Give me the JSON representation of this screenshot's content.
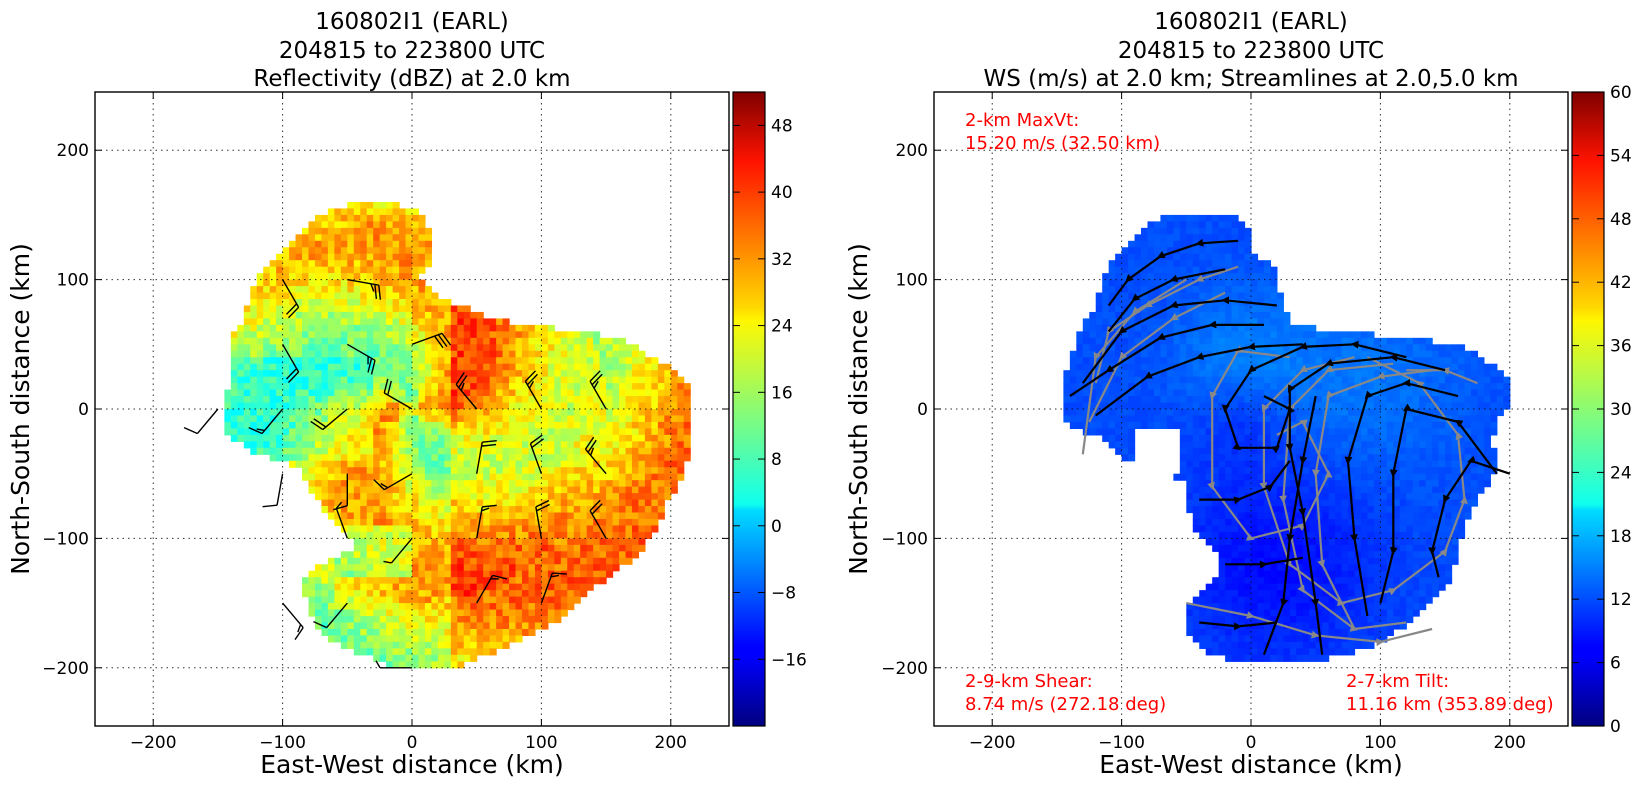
{
  "chart_data": [
    {
      "type": "heatmap",
      "title": [
        "160802I1 (EARL)",
        "204815 to 223800 UTC",
        "Reflectivity (dBZ) at 2.0 km"
      ],
      "xlabel": "East-West distance (km)",
      "ylabel": "North-South distance (km)",
      "xlim": [
        -245,
        245
      ],
      "ylim": [
        -245,
        245
      ],
      "xticks": [
        -200,
        -100,
        0,
        100,
        200
      ],
      "xtick_labels": [
        "−200",
        "−100",
        "0",
        "100",
        "200"
      ],
      "yticks": [
        -200,
        -100,
        0,
        100,
        200
      ],
      "ytick_labels": [
        "−200",
        "−100",
        "0",
        "100",
        "200"
      ],
      "grid": true,
      "colorbar": {
        "min": -24,
        "max": 52,
        "ticks": [
          -16,
          -8,
          0,
          8,
          16,
          24,
          32,
          40,
          48
        ],
        "tick_labels": [
          "−16",
          "−8",
          "0",
          "8",
          "16",
          "24",
          "32",
          "40",
          "48"
        ]
      },
      "data_extent_km": {
        "north": 158,
        "south": -198,
        "west": -143,
        "east": 217
      },
      "overlay": "wind barbs at 50 km spacing",
      "wind_barbs": [
        {
          "x": -150,
          "y": 0,
          "dir": 220,
          "speed": 10
        },
        {
          "x": -100,
          "y": 0,
          "dir": 220,
          "speed": 15
        },
        {
          "x": -50,
          "y": 0,
          "dir": 230,
          "speed": 20
        },
        {
          "x": 0,
          "y": 0,
          "dir": 300,
          "speed": 20
        },
        {
          "x": 50,
          "y": 0,
          "dir": 320,
          "speed": 25
        },
        {
          "x": 100,
          "y": 0,
          "dir": 330,
          "speed": 25
        },
        {
          "x": 150,
          "y": 0,
          "dir": 330,
          "speed": 25
        },
        {
          "x": -100,
          "y": 100,
          "dir": 150,
          "speed": 20
        },
        {
          "x": -50,
          "y": 100,
          "dir": 100,
          "speed": 25
        },
        {
          "x": -100,
          "y": 50,
          "dir": 150,
          "speed": 20
        },
        {
          "x": -50,
          "y": 50,
          "dir": 120,
          "speed": 25
        },
        {
          "x": 0,
          "y": 50,
          "dir": 70,
          "speed": 30
        },
        {
          "x": -100,
          "y": -50,
          "dir": 190,
          "speed": 10
        },
        {
          "x": -50,
          "y": -50,
          "dir": 180,
          "speed": 10
        },
        {
          "x": 0,
          "y": -50,
          "dir": 240,
          "speed": 15
        },
        {
          "x": 50,
          "y": -50,
          "dir": 10,
          "speed": 20
        },
        {
          "x": 100,
          "y": -50,
          "dir": 340,
          "speed": 20
        },
        {
          "x": 150,
          "y": -50,
          "dir": 320,
          "speed": 25
        },
        {
          "x": -50,
          "y": -100,
          "dir": 340,
          "speed": 5
        },
        {
          "x": 0,
          "y": -100,
          "dir": 220,
          "speed": 5
        },
        {
          "x": 50,
          "y": -100,
          "dir": 10,
          "speed": 15
        },
        {
          "x": 100,
          "y": -100,
          "dir": 350,
          "speed": 20
        },
        {
          "x": 150,
          "y": -100,
          "dir": 330,
          "speed": 20
        },
        {
          "x": -100,
          "y": -150,
          "dir": 140,
          "speed": 15
        },
        {
          "x": -50,
          "y": -150,
          "dir": 220,
          "speed": 10
        },
        {
          "x": 50,
          "y": -150,
          "dir": 30,
          "speed": 15
        },
        {
          "x": 100,
          "y": -150,
          "dir": 20,
          "speed": 15
        },
        {
          "x": 0,
          "y": -200,
          "dir": 270,
          "speed": 5
        }
      ]
    },
    {
      "type": "heatmap",
      "title": [
        "160802I1 (EARL)",
        "204815 to 223800 UTC",
        "WS (m/s) at 2.0 km; Streamlines at 2.0,5.0 km"
      ],
      "xlabel": "East-West distance (km)",
      "ylabel": "North-South distance (km)",
      "xlim": [
        -245,
        245
      ],
      "ylim": [
        -245,
        245
      ],
      "xticks": [
        -200,
        -100,
        0,
        100,
        200
      ],
      "xtick_labels": [
        "−200",
        "−100",
        "0",
        "100",
        "200"
      ],
      "yticks": [
        -200,
        -100,
        0,
        100,
        200
      ],
      "ytick_labels": [
        "−200",
        "−100",
        "0",
        "100",
        "200"
      ],
      "grid": true,
      "colorbar": {
        "min": 0,
        "max": 60,
        "ticks": [
          0,
          6,
          12,
          18,
          24,
          30,
          36,
          42,
          48,
          54,
          60
        ],
        "tick_labels": [
          "0",
          "6",
          "12",
          "18",
          "24",
          "30",
          "36",
          "42",
          "48",
          "54",
          "60"
        ]
      },
      "streamline_levels": [
        {
          "name": "2.0 km",
          "color": "#000000"
        },
        {
          "name": "5.0 km",
          "color": "#808080"
        }
      ],
      "annotations": {
        "maxvt_line1": "2-km MaxVt:",
        "maxvt_line2": "15.20 m/s (32.50 km)",
        "shear_line1": "2-9-km Shear:",
        "shear_line2": "8.74 m/s (272.18 deg)",
        "tilt_line1": "2-7-km Tilt:",
        "tilt_line2": "11.16 km (353.89 deg)"
      },
      "annotation_color": "#ff0000"
    }
  ]
}
